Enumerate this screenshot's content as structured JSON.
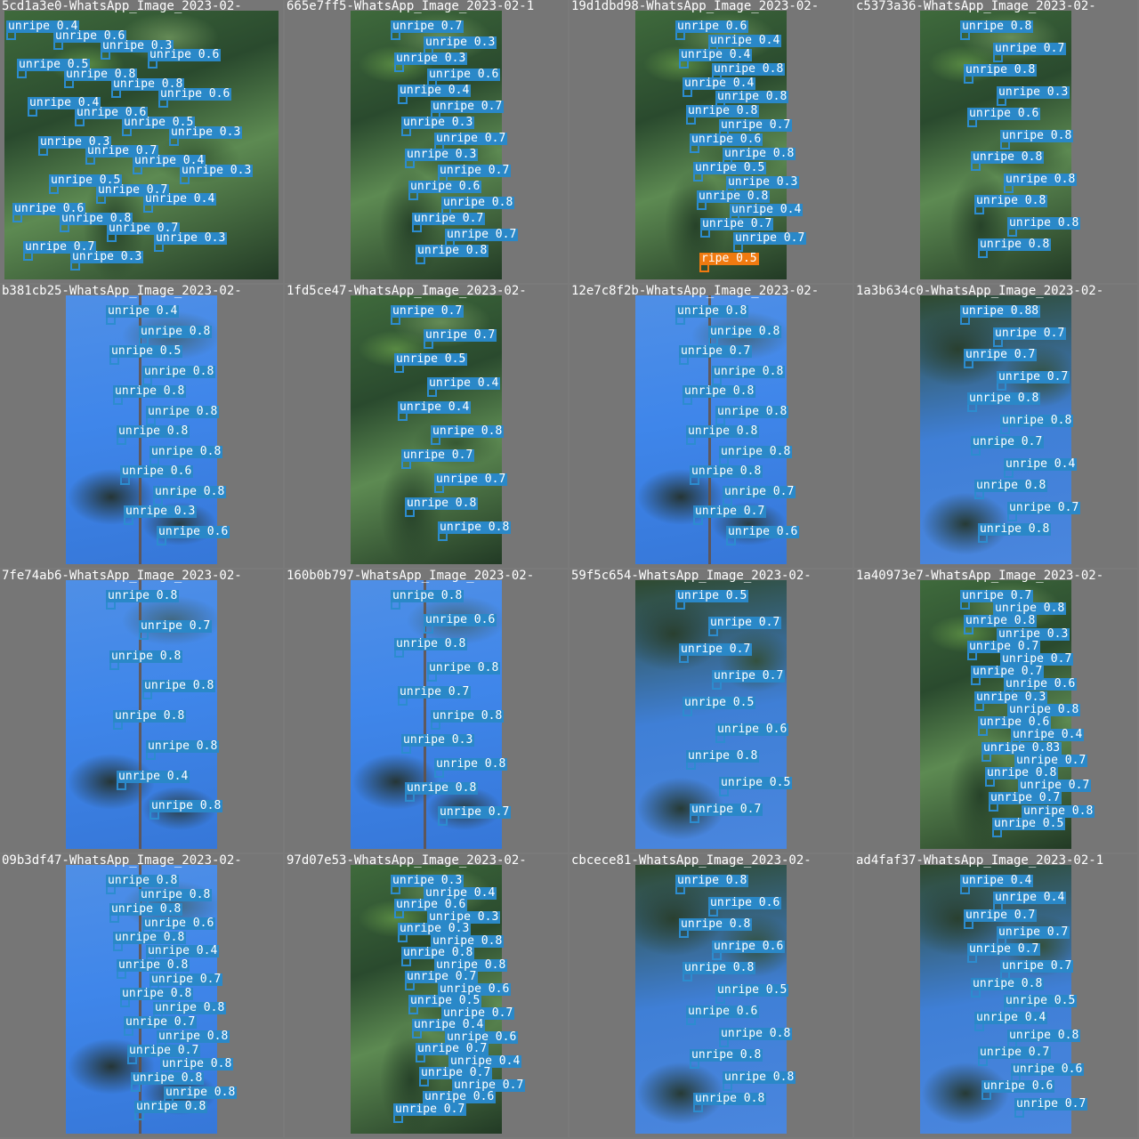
{
  "grid": {
    "colors": {
      "background": "#767676",
      "label": "#2a88c8",
      "label_alt": "#f07a10",
      "text": "#ffffff"
    },
    "tiles": [
      {
        "title": "5cd1a3e0-WhatsApp_Image_2023-02-",
        "photo": "leaf",
        "detections": [
          "unripe 0.4",
          "unripe 0.6",
          "unripe 0.3",
          "unripe 0.6",
          "unripe 0.5",
          "unripe 0.8",
          "unripe 0.8",
          "unripe 0.6",
          "unripe 0.4",
          "unripe 0.6",
          "unripe 0.5",
          "unripe 0.3",
          "unripe 0.3",
          "unripe 0.7",
          "unripe 0.4",
          "unripe 0.3",
          "unripe 0.5",
          "unripe 0.7",
          "unripe 0.4",
          "unripe 0.6",
          "unripe 0.8",
          "unripe 0.7",
          "unripe 0.3",
          "unripe 0.7",
          "unripe 0.3"
        ]
      },
      {
        "title": "665e7ff5-WhatsApp_Image_2023-02-1",
        "photo": "leaf",
        "detections": [
          "unripe 0.7",
          "unripe 0.3",
          "unripe 0.3",
          "unripe 0.6",
          "unripe 0.4",
          "unripe 0.7",
          "unripe 0.3",
          "unripe 0.7",
          "unripe 0.3",
          "unripe 0.7",
          "unripe 0.6",
          "unripe 0.8",
          "unripe 0.7",
          "unripe 0.7",
          "unripe 0.8"
        ]
      },
      {
        "title": "19d1dbd98-WhatsApp_Image_2023-02-",
        "photo": "leaf",
        "detections": [
          "unripe 0.6",
          "unripe 0.4",
          "unripe 0.4",
          "unripe 0.8",
          "unripe 0.4",
          "unripe 0.8",
          "unripe 0.8",
          "unripe 0.7",
          "unripe 0.6",
          "unripe 0.8",
          "unripe 0.5",
          "unripe 0.3",
          "unripe 0.8",
          "unripe 0.4",
          "unripe 0.7",
          "unripe 0.7",
          {
            "t": "ripe 0.5",
            "c": "orange"
          }
        ]
      },
      {
        "title": "c5373a36-WhatsApp_Image_2023-02-",
        "photo": "leaf",
        "detections": [
          "unripe 0.8",
          "unripe 0.7",
          "unripe 0.8",
          "unripe 0.3",
          "unripe 0.6",
          "unripe 0.8",
          "unripe 0.8",
          "unripe 0.8",
          "unripe 0.8",
          "unripe 0.8",
          "unripe 0.8"
        ]
      },
      {
        "title": "b381cb25-WhatsApp_Image_2023-02-",
        "photo": "wall",
        "detections": [
          "unripe 0.4",
          "unripe 0.8",
          "unripe 0.5",
          "unripe 0.8",
          "unripe 0.8",
          "unripe 0.8",
          "unripe 0.8",
          "unripe 0.8",
          "unripe 0.6",
          "unripe 0.8",
          "unripe 0.3",
          "unripe 0.6"
        ]
      },
      {
        "title": "1fd5ce47-WhatsApp_Image_2023-02-",
        "photo": "leaf",
        "detections": [
          "unripe 0.7",
          "unripe 0.7",
          "unripe 0.5",
          "unripe 0.4",
          "unripe 0.4",
          "unripe 0.8",
          "unripe 0.7",
          "unripe 0.7",
          "unripe 0.8",
          "unripe 0.8"
        ]
      },
      {
        "title": "12e7c8f2b-WhatsApp_Image_2023-02-",
        "photo": "wall",
        "detections": [
          "unripe 0.8",
          "unripe 0.8",
          "unripe 0.7",
          "unripe 0.8",
          "unripe 0.8",
          "unripe 0.8",
          "unripe 0.8",
          "unripe 0.8",
          "unripe 0.8",
          "unripe 0.7",
          "unripe 0.7",
          "unripe 0.6"
        ]
      },
      {
        "title": "1a3b634c0-WhatsApp_Image_2023-02-",
        "photo": "mixed",
        "detections": [
          "unripe 0.88",
          "unripe 0.7",
          "unripe 0.7",
          "unripe 0.7",
          "unripe 0.8",
          "unripe 0.8",
          "unripe 0.7",
          "unripe 0.4",
          "unripe 0.8",
          "unripe 0.7",
          "unripe 0.8"
        ]
      },
      {
        "title": "7fe74ab6-WhatsApp_Image_2023-02-",
        "photo": "wall",
        "detections": [
          "unripe 0.8",
          "unripe 0.7",
          "unripe 0.8",
          "unripe 0.8",
          "unripe 0.8",
          "unripe 0.8",
          "unripe 0.4",
          "unripe 0.8"
        ]
      },
      {
        "title": "160b0b797-WhatsApp_Image_2023-02-",
        "photo": "wall",
        "detections": [
          "unripe 0.8",
          "unripe 0.6",
          "unripe 0.8",
          "unripe 0.8",
          "unripe 0.7",
          "unripe 0.8",
          "unripe 0.3",
          "unripe 0.8",
          "unripe 0.8",
          "unripe 0.7"
        ]
      },
      {
        "title": "59f5c654-WhatsApp_Image_2023-02-",
        "photo": "mixed",
        "detections": [
          "unripe 0.5",
          "unripe 0.7",
          "unripe 0.7",
          "unripe 0.7",
          "unripe 0.5",
          "unripe 0.6",
          "unripe 0.8",
          "unripe 0.5",
          "unripe 0.7"
        ]
      },
      {
        "title": "1a40973e7-WhatsApp_Image_2023-02-",
        "photo": "leaf",
        "detections": [
          "unripe 0.7",
          "unripe 0.8",
          "unripe 0.8",
          "unripe 0.3",
          "unripe 0.7",
          "unripe 0.7",
          "unripe 0.7",
          "unripe 0.6",
          "unripe 0.3",
          "unripe 0.8",
          "unripe 0.6",
          "unripe 0.4",
          "unripe 0.83",
          "unripe 0.7",
          "unripe 0.8",
          "unripe 0.7",
          "unripe 0.7",
          "unripe 0.8",
          "unripe 0.5"
        ]
      },
      {
        "title": "09b3df47-WhatsApp_Image_2023-02-",
        "photo": "wall",
        "detections": [
          "unripe 0.8",
          "unripe 0.8",
          "unripe 0.8",
          "unripe 0.6",
          "unripe 0.8",
          "unripe 0.4",
          "unripe 0.8",
          "unripe 0.7",
          "unripe 0.8",
          "unripe 0.8",
          "unripe 0.7",
          "unripe 0.8",
          "unripe 0.7",
          "unripe 0.8",
          "unripe 0.8",
          "unripe 0.8",
          "unripe 0.8"
        ]
      },
      {
        "title": "97d07e53-WhatsApp_Image_2023-02-",
        "photo": "leaf",
        "detections": [
          "unripe 0.3",
          "unripe 0.4",
          "unripe 0.6",
          "unripe 0.3",
          "unripe 0.3",
          "unripe 0.8",
          "unripe 0.8",
          "unripe 0.8",
          "unripe 0.7",
          "unripe 0.6",
          "unripe 0.5",
          "unripe 0.7",
          "unripe 0.4",
          "unripe 0.6",
          "unripe 0.7",
          "unripe 0.4",
          "unripe 0.7",
          "unripe 0.7",
          "unripe 0.6",
          "unripe 0.7"
        ]
      },
      {
        "title": "cbcece81-WhatsApp_Image_2023-02-",
        "photo": "mixed",
        "detections": [
          "unripe 0.8",
          "unripe 0.6",
          "unripe 0.8",
          "unripe 0.6",
          "unripe 0.8",
          "unripe 0.5",
          "unripe 0.6",
          "unripe 0.8",
          "unripe 0.8",
          "unripe 0.8",
          "unripe 0.8"
        ]
      },
      {
        "title": "ad4faf37-WhatsApp_Image_2023-02-1",
        "photo": "mixed",
        "detections": [
          "unripe 0.4",
          "unripe 0.4",
          "unripe 0.7",
          "unripe 0.7",
          "unripe 0.7",
          "unripe 0.7",
          "unripe 0.8",
          "unripe 0.5",
          "unripe 0.4",
          "unripe 0.8",
          "unripe 0.7",
          "unripe 0.6",
          "unripe 0.6",
          "unripe 0.7"
        ]
      }
    ]
  }
}
